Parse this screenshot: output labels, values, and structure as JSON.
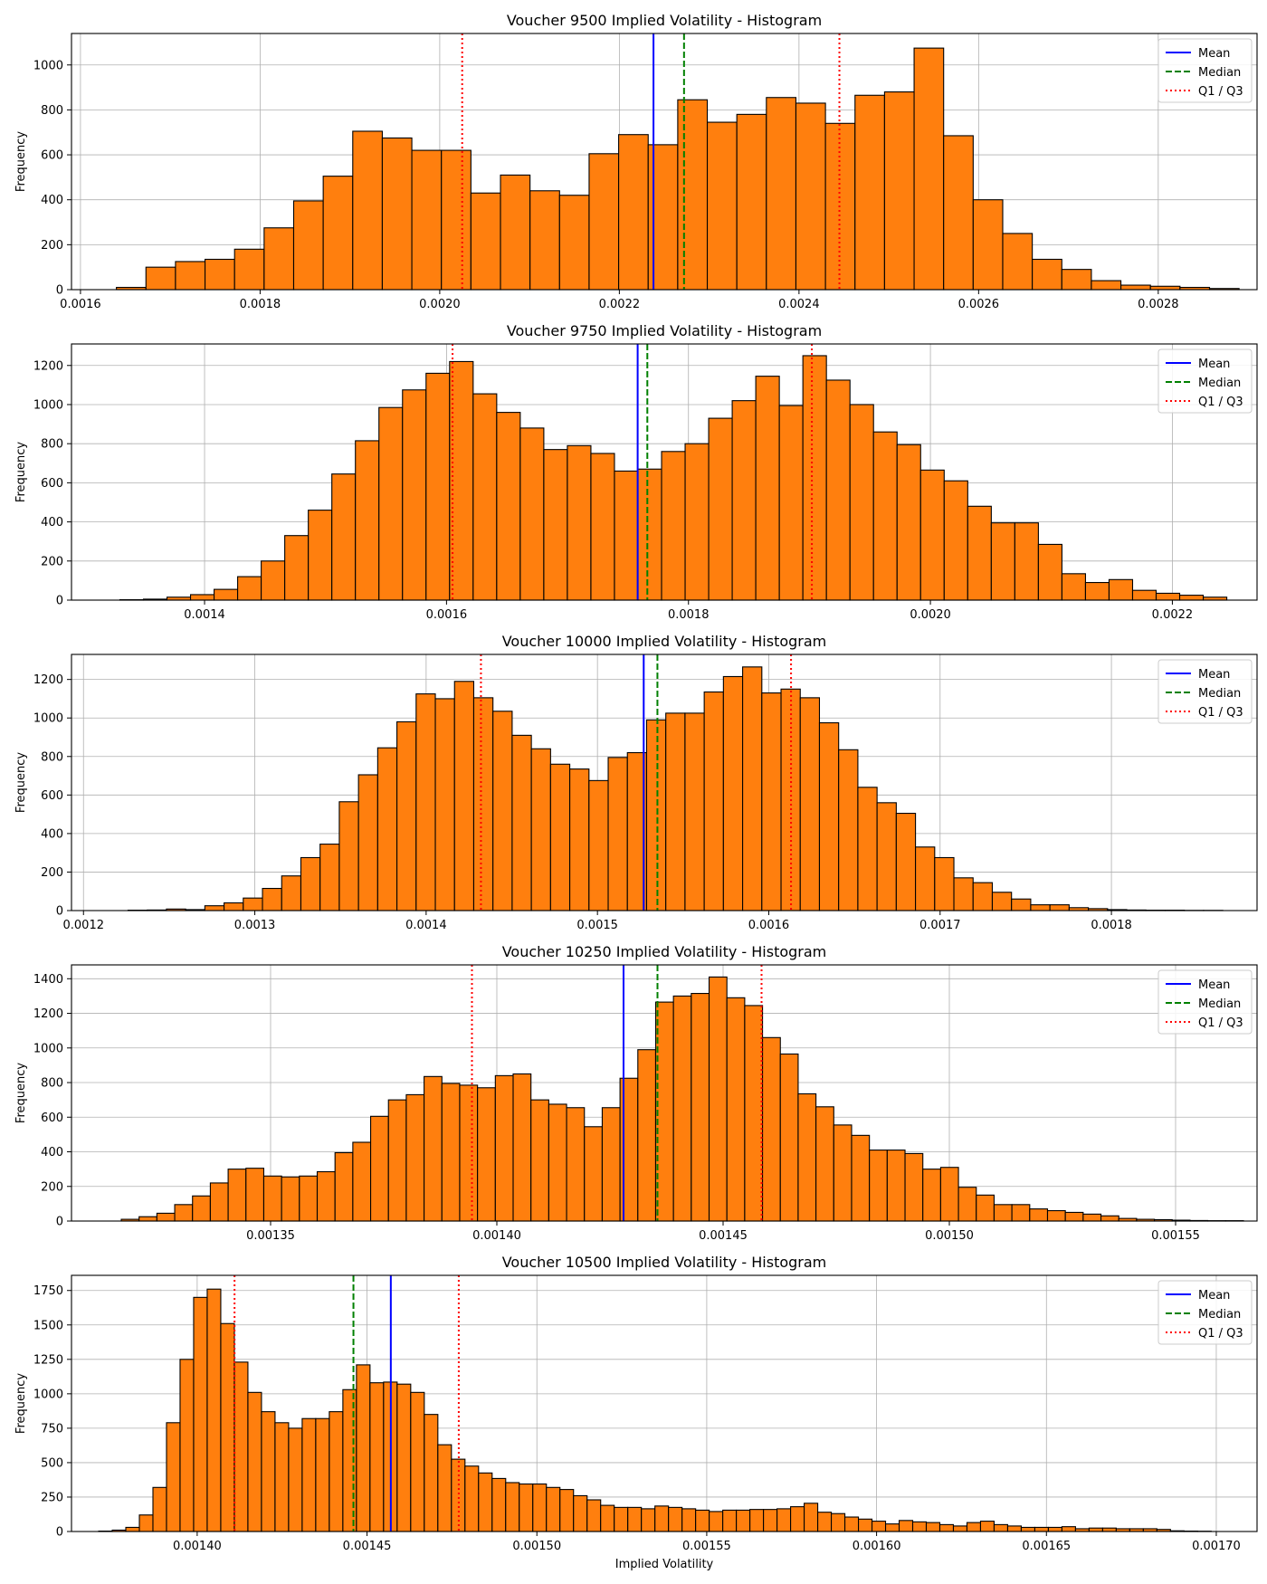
{
  "chart_data": [
    {
      "type": "bar",
      "title": "Voucher 9500 Implied Volatility - Histogram",
      "xlabel": "",
      "ylabel": "Frequency",
      "xlim": [
        0.00159,
        0.00291
      ],
      "ylim": [
        0,
        1140
      ],
      "xticks": [
        0.0016,
        0.0018,
        0.002,
        0.0022,
        0.0024,
        0.0026,
        0.0028
      ],
      "xtick_labels": [
        "0.0016",
        "0.0018",
        "0.0020",
        "0.0022",
        "0.0024",
        "0.0026",
        "0.0028"
      ],
      "yticks": [
        0,
        200,
        400,
        600,
        800,
        1000
      ],
      "ytick_labels": [
        "0",
        "200",
        "400",
        "600",
        "800",
        "1000"
      ],
      "bins_start": 0.00164,
      "bins_end": 0.00289,
      "counts": [
        10,
        100,
        125,
        135,
        180,
        275,
        395,
        505,
        705,
        675,
        620,
        620,
        430,
        510,
        440,
        420,
        605,
        690,
        645,
        845,
        745,
        780,
        855,
        830,
        740,
        865,
        880,
        1075,
        685,
        400,
        250,
        135,
        90,
        40,
        20,
        15,
        10,
        5
      ],
      "mean": 0.002238,
      "median": 0.002272,
      "q1": 0.002025,
      "q3": 0.002445,
      "grid": true,
      "legend_position": "top-right"
    },
    {
      "type": "bar",
      "title": "Voucher 9750 Implied Volatility - Histogram",
      "xlabel": "",
      "ylabel": "Frequency",
      "xlim": [
        0.00129,
        0.00227
      ],
      "ylim": [
        0,
        1310
      ],
      "xticks": [
        0.0014,
        0.0016,
        0.0018,
        0.002,
        0.0022
      ],
      "xtick_labels": [
        "0.0014",
        "0.0016",
        "0.0018",
        "0.0020",
        "0.0022"
      ],
      "yticks": [
        0,
        200,
        400,
        600,
        800,
        1000,
        1200
      ],
      "ytick_labels": [
        "0",
        "200",
        "400",
        "600",
        "800",
        "1000",
        "1200"
      ],
      "bins_start": 0.00133,
      "bins_end": 0.002245,
      "counts": [
        2,
        5,
        15,
        28,
        55,
        120,
        200,
        330,
        460,
        645,
        815,
        985,
        1075,
        1160,
        1220,
        1055,
        960,
        880,
        770,
        790,
        750,
        660,
        670,
        760,
        800,
        930,
        1020,
        1145,
        995,
        1250,
        1125,
        1000,
        860,
        795,
        665,
        610,
        480,
        395,
        395,
        285,
        135,
        90,
        105,
        50,
        35,
        25,
        15
      ],
      "mean": 0.001758,
      "median": 0.001766,
      "q1": 0.001605,
      "q3": 0.001902,
      "grid": true,
      "legend_position": "top-right"
    },
    {
      "type": "bar",
      "title": "Voucher 10000 Implied Volatility - Histogram",
      "xlabel": "",
      "ylabel": "Frequency",
      "xlim": [
        0.001193,
        0.001885
      ],
      "ylim": [
        0,
        1330
      ],
      "xticks": [
        0.0012,
        0.0013,
        0.0014,
        0.0015,
        0.0016,
        0.0017,
        0.0018
      ],
      "xtick_labels": [
        "0.0012",
        "0.0013",
        "0.0014",
        "0.0015",
        "0.0016",
        "0.0017",
        "0.0018"
      ],
      "yticks": [
        0,
        200,
        400,
        600,
        800,
        1000,
        1200
      ],
      "ytick_labels": [
        "0",
        "200",
        "400",
        "600",
        "800",
        "1000",
        "1200"
      ],
      "bins_start": 0.001226,
      "bins_end": 0.001865,
      "counts": [
        2,
        3,
        8,
        5,
        25,
        40,
        65,
        115,
        180,
        275,
        345,
        565,
        705,
        845,
        980,
        1125,
        1100,
        1190,
        1105,
        1035,
        910,
        840,
        760,
        735,
        675,
        795,
        820,
        990,
        1025,
        1025,
        1135,
        1215,
        1265,
        1130,
        1150,
        1105,
        975,
        835,
        640,
        560,
        505,
        330,
        275,
        170,
        145,
        95,
        60,
        30,
        30,
        15,
        10,
        5,
        3,
        2,
        2,
        1,
        1
      ],
      "mean": 0.001527,
      "median": 0.001535,
      "q1": 0.001432,
      "q3": 0.001613,
      "grid": true,
      "legend_position": "top-right"
    },
    {
      "type": "bar",
      "title": "Voucher 10250 Implied Volatility - Histogram",
      "xlabel": "",
      "ylabel": "Frequency",
      "xlim": [
        0.001306,
        0.001568
      ],
      "ylim": [
        0,
        1480
      ],
      "xticks": [
        0.00135,
        0.0014,
        0.00145,
        0.0015,
        0.00155
      ],
      "xtick_labels": [
        "0.00135",
        "0.00140",
        "0.00145",
        "0.00150",
        "0.00155"
      ],
      "yticks": [
        0,
        200,
        400,
        600,
        800,
        1000,
        1200,
        1400
      ],
      "ytick_labels": [
        "0",
        "200",
        "400",
        "600",
        "800",
        "1000",
        "1200",
        "1400"
      ],
      "bins_start": 0.001317,
      "bins_end": 0.001565,
      "counts": [
        10,
        25,
        45,
        95,
        145,
        220,
        300,
        305,
        260,
        255,
        260,
        285,
        395,
        455,
        605,
        700,
        730,
        835,
        795,
        785,
        770,
        840,
        850,
        700,
        675,
        655,
        545,
        655,
        825,
        990,
        1265,
        1300,
        1315,
        1410,
        1290,
        1245,
        1060,
        965,
        735,
        660,
        555,
        495,
        410,
        410,
        390,
        300,
        310,
        195,
        150,
        95,
        95,
        70,
        60,
        50,
        40,
        30,
        15,
        10,
        8,
        5,
        3,
        2,
        2
      ],
      "mean": 0.001428,
      "median": 0.0014355,
      "q1": 0.0013945,
      "q3": 0.0014585,
      "grid": true,
      "legend_position": "top-right"
    },
    {
      "type": "bar",
      "title": "Voucher 10500 Implied Volatility - Histogram",
      "xlabel": "Implied Volatility",
      "ylabel": "Frequency",
      "xlim": [
        0.001363,
        0.001712
      ],
      "ylim": [
        0,
        1860
      ],
      "xticks": [
        0.0014,
        0.00145,
        0.0015,
        0.00155,
        0.0016,
        0.00165,
        0.0017
      ],
      "xtick_labels": [
        "0.00140",
        "0.00145",
        "0.00150",
        "0.00155",
        "0.00160",
        "0.00165",
        "0.00170"
      ],
      "yticks": [
        0,
        250,
        500,
        750,
        1000,
        1250,
        1500,
        1750
      ],
      "ytick_labels": [
        "0",
        "250",
        "500",
        "750",
        "1000",
        "1250",
        "1500",
        "1750"
      ],
      "bins_start": 0.001371,
      "bins_end": 0.0016985,
      "counts": [
        3,
        10,
        30,
        120,
        320,
        790,
        1250,
        1700,
        1760,
        1510,
        1230,
        1010,
        870,
        790,
        750,
        820,
        820,
        870,
        1030,
        1210,
        1080,
        1085,
        1070,
        1010,
        850,
        630,
        525,
        475,
        425,
        385,
        355,
        345,
        345,
        320,
        305,
        260,
        230,
        190,
        175,
        175,
        165,
        185,
        175,
        165,
        155,
        145,
        155,
        155,
        160,
        160,
        165,
        180,
        205,
        140,
        130,
        105,
        90,
        75,
        55,
        80,
        70,
        65,
        50,
        40,
        65,
        75,
        50,
        40,
        30,
        30,
        30,
        35,
        20,
        25,
        25,
        20,
        20,
        20,
        15,
        5,
        3,
        2
      ],
      "mean": 0.001457,
      "median": 0.001446,
      "q1": 0.001411,
      "q3": 0.001477,
      "grid": true,
      "legend_position": "top-right"
    }
  ],
  "legend": {
    "mean_label": "Mean",
    "median_label": "Median",
    "q_label": "Q1 / Q3"
  },
  "colors": {
    "bar_fill": "#ff7f0e",
    "bar_edge": "#000000",
    "mean": "#0000ff",
    "median": "#008000",
    "quartile": "#ff0000",
    "grid": "#b0b0b0"
  }
}
